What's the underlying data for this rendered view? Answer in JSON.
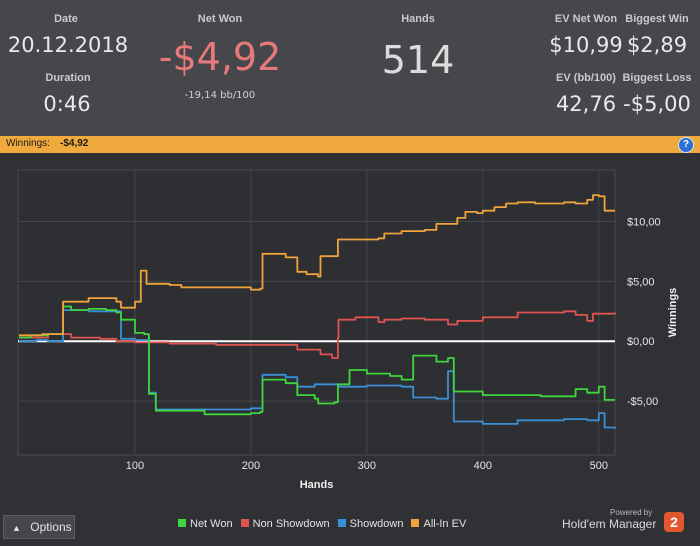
{
  "stats": {
    "date_label": "Date",
    "date_value": "20.12.2018",
    "duration_label": "Duration",
    "duration_value": "0:46",
    "net_won_label": "Net Won",
    "net_won_value": "-$4,92",
    "net_won_sub": "-19,14 bb/100",
    "hands_label": "Hands",
    "hands_value": "514",
    "ev_net_won_label": "EV Net Won",
    "ev_net_won_value": "$10,99",
    "ev_bb_label": "EV (bb/100)",
    "ev_bb_value": "42,76",
    "biggest_win_label": "Biggest Win",
    "biggest_win_value": "$2,89",
    "biggest_loss_label": "Biggest Loss",
    "biggest_loss_value": "-$5,00"
  },
  "winnings_bar": {
    "label": "Winnings:",
    "value": "-$4,92",
    "help_icon": "?"
  },
  "options_button": {
    "label": "Options",
    "icon": "caret-up-icon"
  },
  "branding": {
    "powered": "Powered by",
    "name": "Hold'em Manager",
    "logo_text": "2"
  },
  "colors": {
    "net_won": "#3fd53c",
    "non_showdown": "#e0544f",
    "showdown": "#3a8fd6",
    "all_in_ev": "#f0a33b",
    "header_bg": "#45474b",
    "bar_bg": "#f0a93c",
    "net_won_value": "#e8797a"
  },
  "chart_data": {
    "type": "line",
    "xlabel": "Hands",
    "ylabel": "Winnings",
    "x_ticks": [
      100,
      200,
      300,
      400,
      500
    ],
    "y_ticks": [
      {
        "value": 10,
        "label": "$10,00"
      },
      {
        "value": 5,
        "label": "$5,00"
      },
      {
        "value": 0,
        "label": "$0,00"
      },
      {
        "value": -5,
        "label": "-$5,00"
      }
    ],
    "xlim": [
      0,
      514
    ],
    "ylim": [
      -9.5,
      14.3
    ],
    "grid": true,
    "legend_position": "bottom",
    "series": [
      {
        "name": "Net Won",
        "color": "#3fd53c",
        "points": [
          [
            0,
            0.3
          ],
          [
            10,
            0.5
          ],
          [
            25,
            0.6
          ],
          [
            38,
            2.9
          ],
          [
            45,
            2.6
          ],
          [
            60,
            2.7
          ],
          [
            75,
            2.6
          ],
          [
            84,
            2.4
          ],
          [
            88,
            1.8
          ],
          [
            100,
            0.7
          ],
          [
            108,
            0.6
          ],
          [
            112,
            -4.4
          ],
          [
            118,
            -5.8
          ],
          [
            160,
            -6.1
          ],
          [
            200,
            -6.0
          ],
          [
            208,
            -5.9
          ],
          [
            210,
            -3.2
          ],
          [
            230,
            -3.5
          ],
          [
            240,
            -4.5
          ],
          [
            255,
            -4.8
          ],
          [
            258,
            -5.2
          ],
          [
            272,
            -5.1
          ],
          [
            275,
            -3.6
          ],
          [
            285,
            -2.4
          ],
          [
            300,
            -2.7
          ],
          [
            320,
            -2.9
          ],
          [
            330,
            -3.2
          ],
          [
            340,
            -1.2
          ],
          [
            360,
            -1.7
          ],
          [
            370,
            -1.4
          ],
          [
            375,
            -4.2
          ],
          [
            400,
            -4.5
          ],
          [
            450,
            -4.6
          ],
          [
            480,
            -4.0
          ],
          [
            490,
            -4.3
          ],
          [
            500,
            -3.8
          ],
          [
            505,
            -4.9
          ],
          [
            514,
            -4.9
          ]
        ]
      },
      {
        "name": "Non Showdown",
        "color": "#e0544f",
        "points": [
          [
            0,
            0.3
          ],
          [
            10,
            0.3
          ],
          [
            25,
            0.6
          ],
          [
            45,
            0.3
          ],
          [
            70,
            0.2
          ],
          [
            84,
            0.0
          ],
          [
            100,
            -0.1
          ],
          [
            130,
            -0.2
          ],
          [
            170,
            -0.3
          ],
          [
            200,
            -0.3
          ],
          [
            240,
            -0.7
          ],
          [
            260,
            -1.1
          ],
          [
            270,
            -1.4
          ],
          [
            275,
            0.3
          ],
          [
            275.5,
            1.8
          ],
          [
            290,
            2.0
          ],
          [
            310,
            1.6
          ],
          [
            315,
            1.8
          ],
          [
            330,
            1.9
          ],
          [
            350,
            1.8
          ],
          [
            370,
            1.4
          ],
          [
            378,
            1.7
          ],
          [
            400,
            2.0
          ],
          [
            430,
            2.4
          ],
          [
            470,
            2.5
          ],
          [
            480,
            2.2
          ],
          [
            490,
            1.7
          ],
          [
            495,
            2.3
          ],
          [
            514,
            2.4
          ]
        ]
      },
      {
        "name": "Showdown",
        "color": "#3a8fd6",
        "points": [
          [
            0,
            0.0
          ],
          [
            15,
            0.1
          ],
          [
            25,
            0.0
          ],
          [
            38,
            2.6
          ],
          [
            60,
            2.5
          ],
          [
            84,
            2.5
          ],
          [
            88,
            0.2
          ],
          [
            100,
            0.1
          ],
          [
            112,
            -4.3
          ],
          [
            118,
            -5.7
          ],
          [
            200,
            -5.6
          ],
          [
            208,
            -5.6
          ],
          [
            210,
            -2.8
          ],
          [
            230,
            -3.0
          ],
          [
            240,
            -3.8
          ],
          [
            255,
            -3.6
          ],
          [
            275,
            -3.8
          ],
          [
            300,
            -3.7
          ],
          [
            330,
            -3.8
          ],
          [
            340,
            -4.7
          ],
          [
            360,
            -4.8
          ],
          [
            370,
            -2.5
          ],
          [
            375,
            -6.7
          ],
          [
            400,
            -6.9
          ],
          [
            430,
            -6.6
          ],
          [
            470,
            -6.5
          ],
          [
            490,
            -6.6
          ],
          [
            500,
            -6.0
          ],
          [
            505,
            -7.2
          ],
          [
            514,
            -7.3
          ]
        ]
      },
      {
        "name": "All-In EV",
        "color": "#f0a33b",
        "points": [
          [
            0,
            0.5
          ],
          [
            20,
            0.6
          ],
          [
            38,
            3.3
          ],
          [
            60,
            3.6
          ],
          [
            84,
            3.3
          ],
          [
            88,
            2.8
          ],
          [
            100,
            3.3
          ],
          [
            105,
            5.9
          ],
          [
            110,
            4.8
          ],
          [
            130,
            4.7
          ],
          [
            140,
            4.5
          ],
          [
            165,
            4.5
          ],
          [
            200,
            4.3
          ],
          [
            208,
            4.4
          ],
          [
            210,
            7.3
          ],
          [
            230,
            7.0
          ],
          [
            240,
            5.8
          ],
          [
            248,
            5.6
          ],
          [
            258,
            5.4
          ],
          [
            260,
            7.1
          ],
          [
            275,
            8.5
          ],
          [
            300,
            8.5
          ],
          [
            310,
            8.6
          ],
          [
            315,
            9.0
          ],
          [
            330,
            9.2
          ],
          [
            350,
            9.3
          ],
          [
            360,
            9.8
          ],
          [
            370,
            9.8
          ],
          [
            378,
            10.3
          ],
          [
            385,
            10.8
          ],
          [
            395,
            10.7
          ],
          [
            400,
            10.9
          ],
          [
            410,
            11.2
          ],
          [
            420,
            11.5
          ],
          [
            430,
            11.6
          ],
          [
            445,
            11.5
          ],
          [
            460,
            11.5
          ],
          [
            470,
            11.6
          ],
          [
            480,
            11.5
          ],
          [
            490,
            11.8
          ],
          [
            495,
            12.2
          ],
          [
            500,
            12.1
          ],
          [
            505,
            10.9
          ],
          [
            514,
            10.9
          ]
        ]
      }
    ]
  }
}
